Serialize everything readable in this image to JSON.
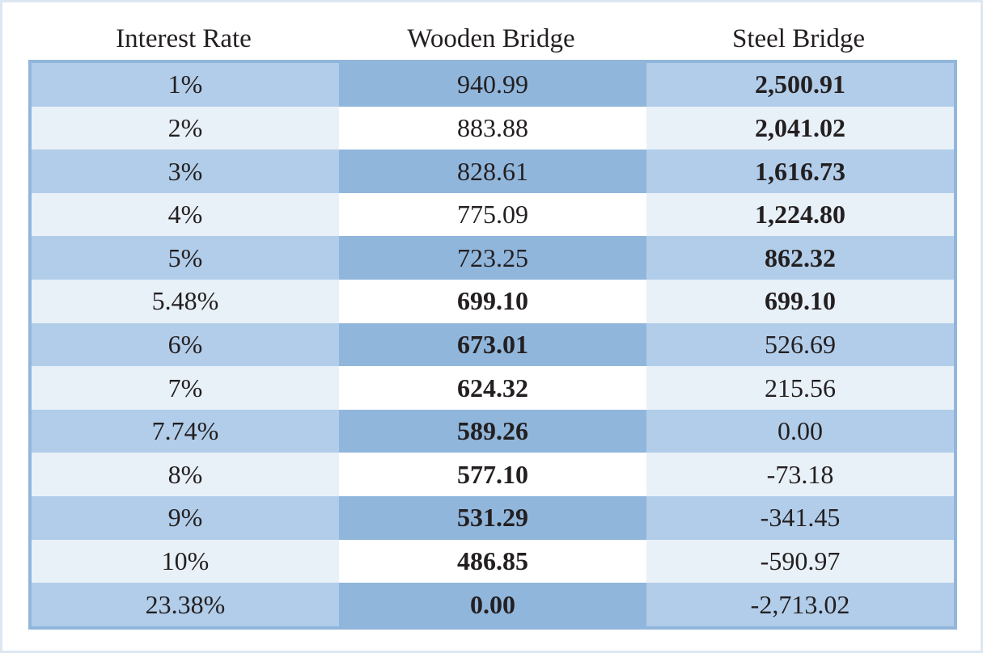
{
  "headers": [
    "Interest Rate",
    "Wooden Bridge",
    "Steel Bridge"
  ],
  "rows": [
    {
      "rate": "1%",
      "wood": "940.99",
      "wood_bold": false,
      "steel": "2,500.91",
      "steel_bold": true
    },
    {
      "rate": "2%",
      "wood": "883.88",
      "wood_bold": false,
      "steel": "2,041.02",
      "steel_bold": true
    },
    {
      "rate": "3%",
      "wood": "828.61",
      "wood_bold": false,
      "steel": "1,616.73",
      "steel_bold": true
    },
    {
      "rate": "4%",
      "wood": "775.09",
      "wood_bold": false,
      "steel": "1,224.80",
      "steel_bold": true
    },
    {
      "rate": "5%",
      "wood": "723.25",
      "wood_bold": false,
      "steel": "862.32",
      "steel_bold": true
    },
    {
      "rate": "5.48%",
      "wood": "699.10",
      "wood_bold": true,
      "steel": "699.10",
      "steel_bold": true
    },
    {
      "rate": "6%",
      "wood": "673.01",
      "wood_bold": true,
      "steel": "526.69",
      "steel_bold": false
    },
    {
      "rate": "7%",
      "wood": "624.32",
      "wood_bold": true,
      "steel": "215.56",
      "steel_bold": false
    },
    {
      "rate": "7.74%",
      "wood": "589.26",
      "wood_bold": true,
      "steel": "0.00",
      "steel_bold": false
    },
    {
      "rate": "8%",
      "wood": "577.10",
      "wood_bold": true,
      "steel": "-73.18",
      "steel_bold": false
    },
    {
      "rate": "9%",
      "wood": "531.29",
      "wood_bold": true,
      "steel": "-341.45",
      "steel_bold": false
    },
    {
      "rate": "10%",
      "wood": "486.85",
      "wood_bold": true,
      "steel": "-590.97",
      "steel_bold": false
    },
    {
      "rate": "23.38%",
      "wood": "0.00",
      "wood_bold": true,
      "steel": "-2,713.02",
      "steel_bold": false
    }
  ]
}
